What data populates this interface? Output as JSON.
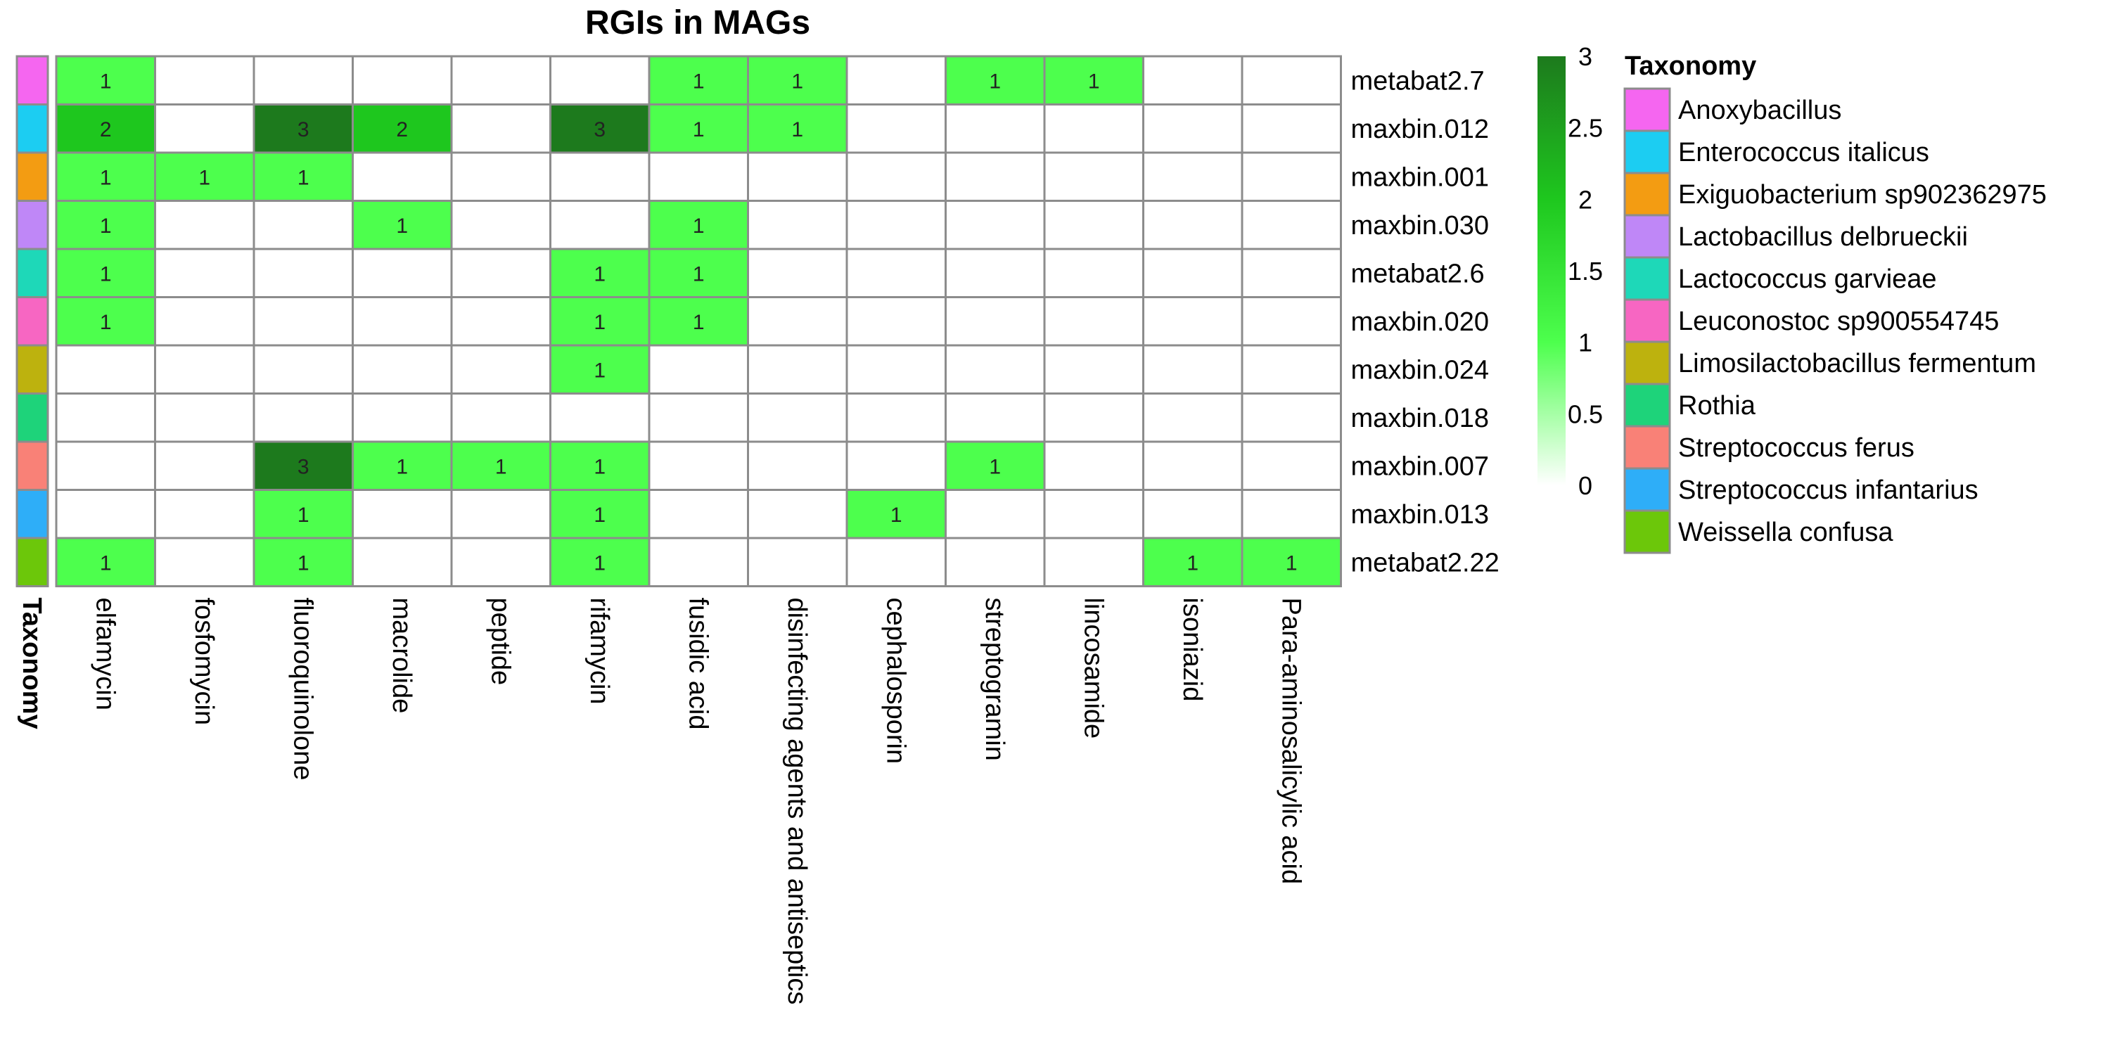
{
  "chart_data": {
    "type": "heatmap",
    "title": "RGIs in MAGs",
    "rows": [
      "metabat2.7",
      "maxbin.012",
      "maxbin.001",
      "maxbin.030",
      "metabat2.6",
      "maxbin.020",
      "maxbin.024",
      "maxbin.018",
      "maxbin.007",
      "maxbin.013",
      "metabat2.22"
    ],
    "columns": [
      "elfamycin",
      "fosfomycin",
      "fluoroquinolone",
      "macrolide",
      "peptide",
      "rifamycin",
      "fusidic acid",
      "disinfecting agents and antiseptics",
      "cephalosporin",
      "streptogramin",
      "lincosamide",
      "isoniazid",
      "Para-aminosalicylic acid"
    ],
    "values": [
      [
        1,
        0,
        0,
        0,
        0,
        0,
        1,
        1,
        0,
        1,
        1,
        0,
        0
      ],
      [
        2,
        0,
        3,
        2,
        0,
        3,
        1,
        1,
        0,
        0,
        0,
        0,
        0
      ],
      [
        1,
        1,
        1,
        0,
        0,
        0,
        0,
        0,
        0,
        0,
        0,
        0,
        0
      ],
      [
        1,
        0,
        0,
        1,
        0,
        0,
        1,
        0,
        0,
        0,
        0,
        0,
        0
      ],
      [
        1,
        0,
        0,
        0,
        0,
        1,
        1,
        0,
        0,
        0,
        0,
        0,
        0
      ],
      [
        1,
        0,
        0,
        0,
        0,
        1,
        1,
        0,
        0,
        0,
        0,
        0,
        0
      ],
      [
        0,
        0,
        0,
        0,
        0,
        1,
        0,
        0,
        0,
        0,
        0,
        0,
        0
      ],
      [
        0,
        0,
        0,
        0,
        0,
        0,
        0,
        0,
        0,
        0,
        0,
        0,
        0
      ],
      [
        0,
        0,
        3,
        1,
        1,
        1,
        0,
        0,
        0,
        1,
        0,
        0,
        0
      ],
      [
        0,
        0,
        1,
        0,
        0,
        1,
        0,
        0,
        1,
        0,
        0,
        0,
        0
      ],
      [
        1,
        0,
        1,
        0,
        0,
        1,
        0,
        0,
        0,
        0,
        0,
        1,
        1
      ]
    ],
    "value_range": [
      0,
      3
    ],
    "colorbar": {
      "ticks": [
        "3",
        "2.5",
        "2",
        "1.5",
        "1",
        "0.5",
        "0"
      ],
      "stops": [
        {
          "value": 0,
          "color": "#ffffff"
        },
        {
          "value": 1,
          "color": "#4dff4d"
        },
        {
          "value": 2,
          "color": "#1ec71e"
        },
        {
          "value": 3,
          "color": "#1d7a1d"
        }
      ]
    },
    "annotation": {
      "label": "Taxonomy",
      "row_taxa": [
        "Anoxybacillus",
        "Enterococcus italicus",
        "Exiguobacterium sp902362975",
        "Lactobacillus delbrueckii",
        "Lactococcus garvieae",
        "Leuconostoc sp900554745",
        "Limosilactobacillus fermentum",
        "Rothia",
        "Streptococcus ferus",
        "Streptococcus infantarius",
        "Weissella confusa"
      ]
    },
    "legend": {
      "title": "Taxonomy",
      "entries": [
        {
          "name": "Anoxybacillus",
          "color": "#f566f0"
        },
        {
          "name": "Enterococcus italicus",
          "color": "#1ccdf2"
        },
        {
          "name": "Exiguobacterium sp902362975",
          "color": "#f39c12"
        },
        {
          "name": "Lactobacillus delbrueckii",
          "color": "#bf87f7"
        },
        {
          "name": "Lactococcus garvieae",
          "color": "#1ed8b8"
        },
        {
          "name": "Leuconostoc sp900554745",
          "color": "#f766c2"
        },
        {
          "name": "Limosilactobacillus fermentum",
          "color": "#bdb20e"
        },
        {
          "name": "Rothia",
          "color": "#1ed37a"
        },
        {
          "name": "Streptococcus ferus",
          "color": "#f98177"
        },
        {
          "name": "Streptococcus infantarius",
          "color": "#2eaef8"
        },
        {
          "name": "Weissella confusa",
          "color": "#6cc70a"
        }
      ]
    },
    "grid": true,
    "legend_placement": "right"
  }
}
